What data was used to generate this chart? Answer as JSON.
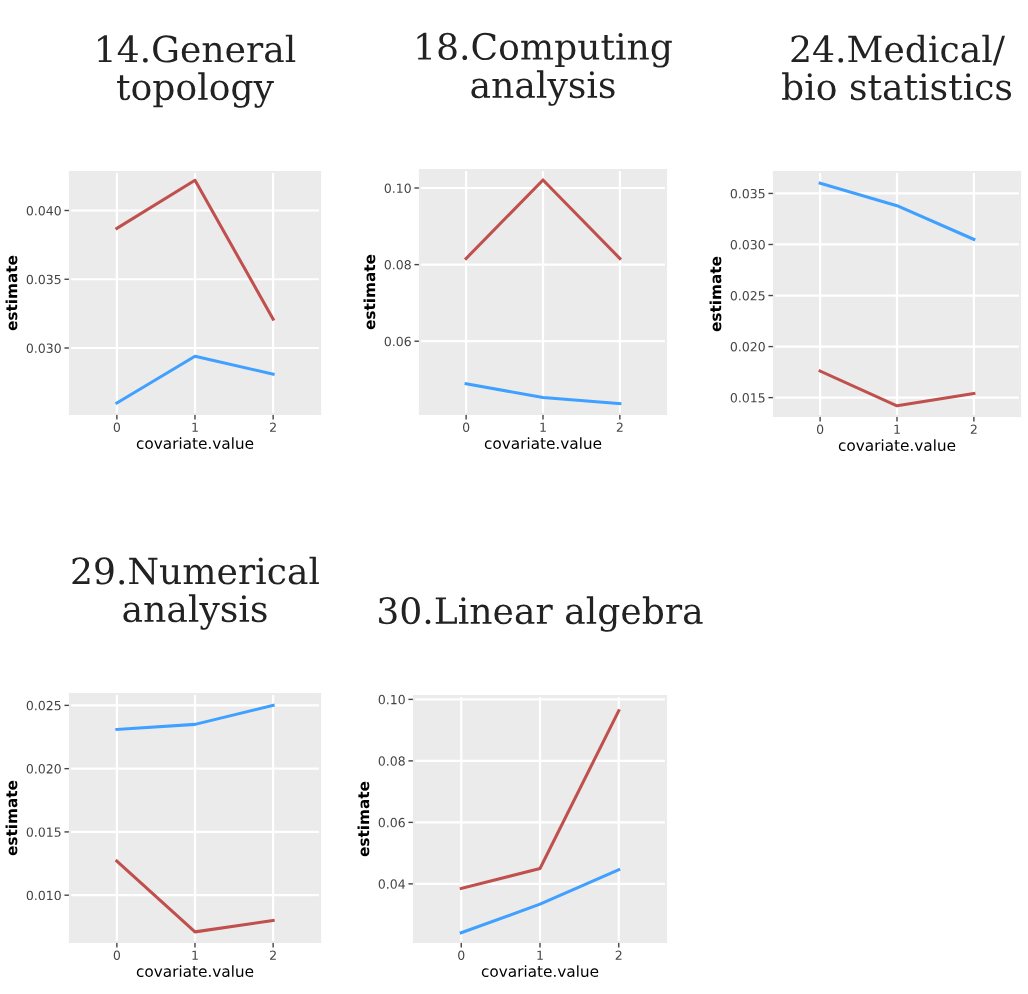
{
  "chart_data": [
    {
      "type": "line",
      "title": "14.General\ntopology",
      "xlabel": "covariate.value",
      "ylabel": "estimate",
      "x": [
        0,
        1,
        2
      ],
      "xlim": [
        -0.6,
        2.6
      ],
      "xticks": [
        0,
        1,
        2
      ],
      "ylim": [
        0.0252,
        0.0428
      ],
      "yticks": [
        {
          "value": 0.03,
          "label": "0.030"
        },
        {
          "value": 0.035,
          "label": "0.035"
        },
        {
          "value": 0.04,
          "label": "0.040"
        }
      ],
      "grid": true,
      "series": [
        {
          "color": "#c0504d",
          "values": [
            0.0387,
            0.0422,
            0.0321
          ]
        },
        {
          "color": "#3fa0ff",
          "values": [
            0.026,
            0.0294,
            0.0281
          ]
        }
      ]
    },
    {
      "type": "line",
      "title": "18.Computing\nanalysis",
      "xlabel": "covariate.value",
      "ylabel": "estimate",
      "x": [
        0,
        1,
        2
      ],
      "xlim": [
        -0.6,
        2.6
      ],
      "xticks": [
        0,
        1,
        2
      ],
      "ylim": [
        0.041,
        0.1047
      ],
      "yticks": [
        {
          "value": 0.06,
          "label": "0.06"
        },
        {
          "value": 0.08,
          "label": "0.08"
        },
        {
          "value": 0.1,
          "label": "0.10"
        }
      ],
      "grid": true,
      "series": [
        {
          "color": "#c0504d",
          "values": [
            0.0816,
            0.1021,
            0.0816
          ]
        },
        {
          "color": "#3fa0ff",
          "values": [
            0.0489,
            0.0453,
            0.0437
          ]
        }
      ]
    },
    {
      "type": "line",
      "title": "24.Medical/\nbio statistics",
      "xlabel": "covariate.value",
      "ylabel": "estimate",
      "x": [
        0,
        1,
        2
      ],
      "xlim": [
        -0.6,
        2.6
      ],
      "xticks": [
        0,
        1,
        2
      ],
      "ylim": [
        0.0132,
        0.0371
      ],
      "yticks": [
        {
          "value": 0.015,
          "label": "0.015"
        },
        {
          "value": 0.02,
          "label": "0.020"
        },
        {
          "value": 0.025,
          "label": "0.025"
        },
        {
          "value": 0.03,
          "label": "0.030"
        },
        {
          "value": 0.035,
          "label": "0.035"
        }
      ],
      "grid": true,
      "series": [
        {
          "color": "#3fa0ff",
          "values": [
            0.036,
            0.0338,
            0.0305
          ]
        },
        {
          "color": "#c0504d",
          "values": [
            0.0176,
            0.0142,
            0.0154
          ]
        }
      ]
    },
    {
      "type": "line",
      "title": "29.Numerical\nanalysis",
      "xlabel": "covariate.value",
      "ylabel": "estimate",
      "x": [
        0,
        1,
        2
      ],
      "xlim": [
        -0.6,
        2.6
      ],
      "xticks": [
        0,
        1,
        2
      ],
      "ylim": [
        0.0063,
        0.0259
      ],
      "yticks": [
        {
          "value": 0.01,
          "label": "0.010"
        },
        {
          "value": 0.015,
          "label": "0.015"
        },
        {
          "value": 0.02,
          "label": "0.020"
        },
        {
          "value": 0.025,
          "label": "0.025"
        }
      ],
      "grid": true,
      "series": [
        {
          "color": "#3fa0ff",
          "values": [
            0.0231,
            0.0235,
            0.025
          ]
        },
        {
          "color": "#c0504d",
          "values": [
            0.0127,
            0.0071,
            0.008
          ]
        }
      ]
    },
    {
      "type": "line",
      "title": "30.Linear algebra",
      "xlabel": "covariate.value",
      "ylabel": "estimate",
      "x": [
        0,
        1,
        2
      ],
      "xlim": [
        -0.6,
        2.6
      ],
      "xticks": [
        0,
        1,
        2
      ],
      "ylim": [
        0.0211,
        0.1011
      ],
      "yticks": [
        {
          "value": 0.04,
          "label": "0.04"
        },
        {
          "value": 0.06,
          "label": "0.06"
        },
        {
          "value": 0.08,
          "label": "0.08"
        },
        {
          "value": 0.1,
          "label": "0.10"
        }
      ],
      "grid": true,
      "series": [
        {
          "color": "#c0504d",
          "values": [
            0.0385,
            0.045,
            0.0963
          ]
        },
        {
          "color": "#3fa0ff",
          "values": [
            0.0241,
            0.0334,
            0.0446
          ]
        }
      ]
    }
  ]
}
